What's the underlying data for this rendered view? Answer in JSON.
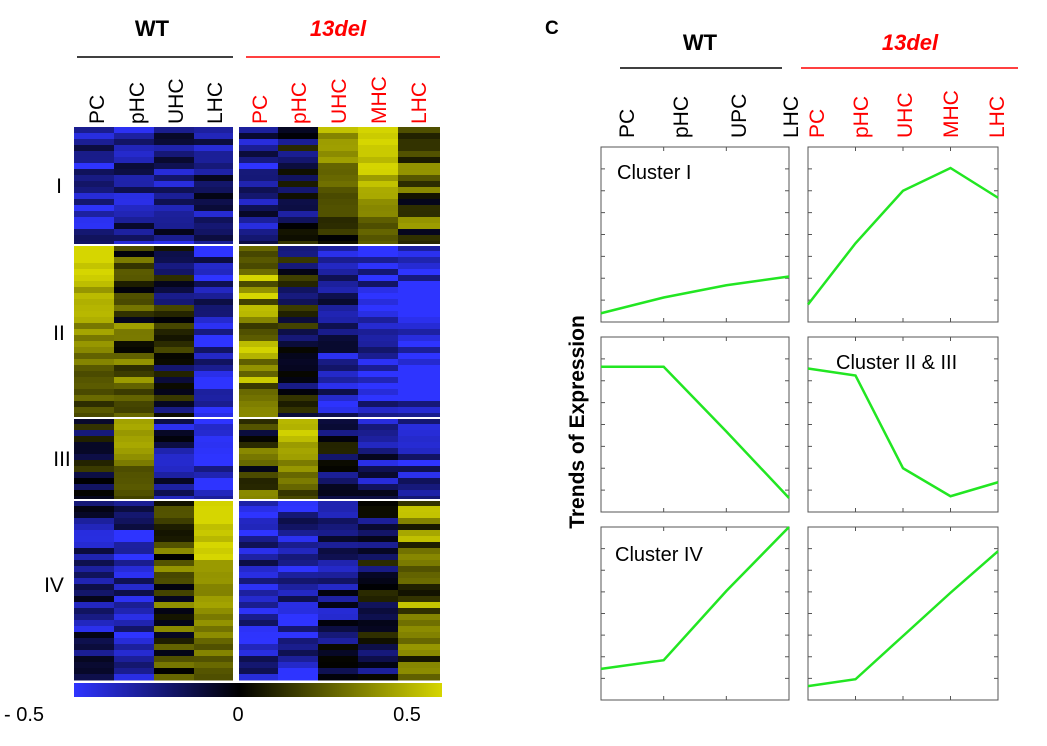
{
  "colors": {
    "wt_text": "#000000",
    "del_text": "#ff0000",
    "heat_low": "#2e34ff",
    "heat_mid": "#000000",
    "heat_high": "#d6d600",
    "trend_line": "#22e622",
    "frame": "#555555"
  },
  "heatmap": {
    "group_labels": [
      "WT",
      "13del"
    ],
    "wt_columns": [
      "PC",
      "pHC",
      "UHC",
      "LHC"
    ],
    "del_columns": [
      "PC",
      "pHC",
      "UHC",
      "MHC",
      "LHC"
    ],
    "clusters": [
      "I",
      "II",
      "III",
      "IV"
    ],
    "colorbar": {
      "min_label": "- 0.5",
      "mid_label": "0",
      "max_label": "0.5"
    }
  },
  "panel_c": {
    "letter": "C",
    "group_labels": [
      "WT",
      "13del"
    ],
    "wt_columns": [
      "PC",
      "pHC",
      "UPC",
      "LHC"
    ],
    "del_columns": [
      "PC",
      "pHC",
      "UHC",
      "MHC",
      "LHC"
    ],
    "ylabel": "Trends of Expression"
  },
  "chart_data": [
    {
      "type": "heatmap",
      "columns": [
        "PC",
        "pHC",
        "UHC",
        "LHC",
        "PC",
        "pHC",
        "UHC",
        "MHC",
        "LHC"
      ],
      "column_groups": [
        "WT",
        "WT",
        "WT",
        "WT",
        "13del",
        "13del",
        "13del",
        "13del",
        "13del"
      ],
      "row_clusters": [
        "I",
        "II",
        "III",
        "IV"
      ],
      "cluster_mean_values": [
        [
          -0.35,
          -0.3,
          -0.25,
          -0.2,
          -0.3,
          -0.1,
          0.4,
          0.55,
          0.15
        ],
        [
          0.5,
          0.15,
          -0.05,
          -0.35,
          0.35,
          -0.05,
          -0.3,
          -0.4,
          -0.45
        ],
        [
          -0.05,
          0.45,
          -0.25,
          -0.45,
          0.1,
          0.5,
          -0.1,
          -0.25,
          -0.35
        ],
        [
          -0.25,
          -0.3,
          0.15,
          0.55,
          -0.35,
          -0.35,
          -0.2,
          -0.1,
          0.25
        ]
      ],
      "colorbar_range": [
        -0.5,
        0.5
      ]
    },
    {
      "type": "line",
      "title": "Cluster I",
      "group": "WT",
      "x": [
        "PC",
        "pHC",
        "UPC",
        "LHC"
      ],
      "values": [
        0.05,
        0.14,
        0.21,
        0.26
      ],
      "ylim": [
        0,
        1
      ]
    },
    {
      "type": "line",
      "title": "",
      "group": "13del",
      "x": [
        "PC",
        "pHC",
        "UHC",
        "MHC",
        "LHC"
      ],
      "values": [
        0.1,
        0.45,
        0.75,
        0.88,
        0.71
      ],
      "ylim": [
        0,
        1
      ]
    },
    {
      "type": "line",
      "title": "",
      "group": "WT",
      "x": [
        "PC",
        "pHC",
        "UPC",
        "LHC"
      ],
      "values": [
        0.83,
        0.83,
        0.46,
        0.08
      ],
      "ylim": [
        0,
        1
      ]
    },
    {
      "type": "line",
      "title": "Cluster II & III",
      "group": "13del",
      "x": [
        "PC",
        "pHC",
        "UHC",
        "MHC",
        "LHC"
      ],
      "values": [
        0.82,
        0.78,
        0.25,
        0.09,
        0.17
      ],
      "ylim": [
        0,
        1
      ]
    },
    {
      "type": "line",
      "title": "Cluster IV",
      "group": "WT",
      "x": [
        "PC",
        "pHC",
        "UPC",
        "LHC"
      ],
      "values": [
        0.18,
        0.23,
        0.63,
        1.0
      ],
      "ylim": [
        0,
        1
      ]
    },
    {
      "type": "line",
      "title": "",
      "group": "13del",
      "x": [
        "PC",
        "pHC",
        "UHC",
        "MHC",
        "LHC"
      ],
      "values": [
        0.08,
        0.12,
        0.37,
        0.62,
        0.86
      ],
      "ylim": [
        0,
        1
      ]
    }
  ]
}
